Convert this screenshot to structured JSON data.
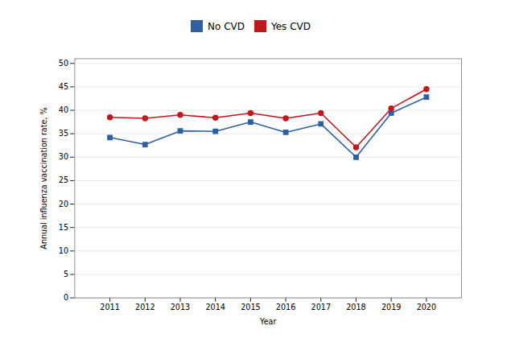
{
  "chart_data": {
    "type": "line",
    "x": [
      2011,
      2012,
      2013,
      2014,
      2015,
      2016,
      2017,
      2018,
      2019,
      2020
    ],
    "series": [
      {
        "name": "No CVD",
        "color": "#2E5FA3",
        "marker": "square",
        "values": [
          34.2,
          32.7,
          35.6,
          35.5,
          37.5,
          35.3,
          37.1,
          30.0,
          39.4,
          42.8
        ]
      },
      {
        "name": "Yes CVD",
        "color": "#C0181C",
        "marker": "circle",
        "values": [
          38.5,
          38.3,
          39.0,
          38.4,
          39.4,
          38.3,
          39.4,
          32.1,
          40.4,
          44.5
        ]
      }
    ],
    "xlabel": "Year",
    "ylabel": "Annual influenza vaccination rate, %",
    "xlim": [
      2010,
      2021
    ],
    "xticks": [
      2011,
      2012,
      2013,
      2014,
      2015,
      2016,
      2017,
      2018,
      2019,
      2020
    ],
    "ylim": [
      0,
      51
    ],
    "yticks": [
      0,
      5,
      10,
      15,
      20,
      25,
      30,
      35,
      40,
      45,
      50
    ],
    "grid": true,
    "legend": "top"
  }
}
